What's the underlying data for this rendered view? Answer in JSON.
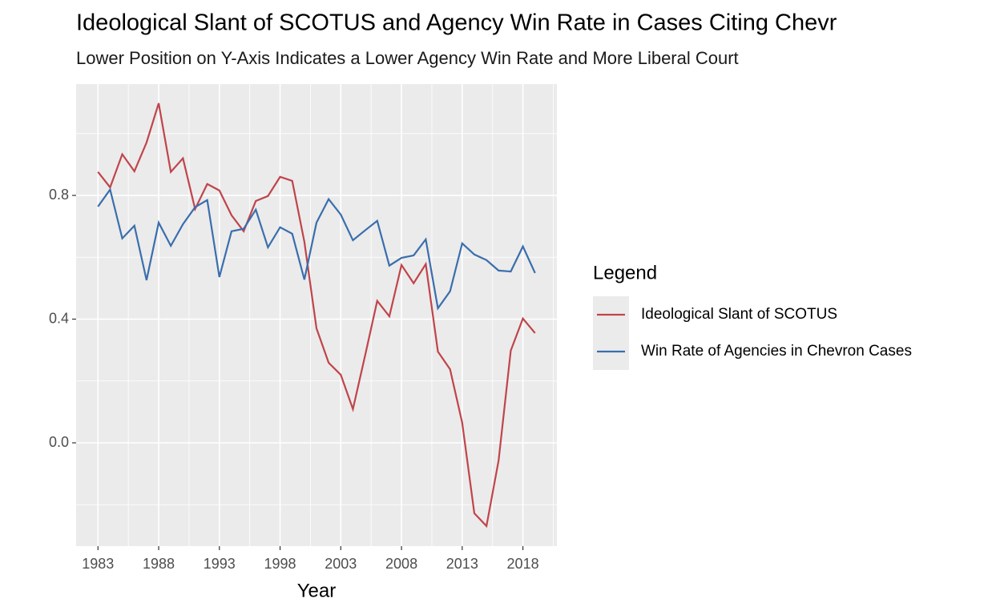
{
  "chart_data": {
    "type": "line",
    "title": "Ideological Slant of SCOTUS and Agency Win Rate in Cases Citing Chevr",
    "subtitle": "Lower Position on Y-Axis Indicates a Lower Agency Win Rate and More Liberal Court",
    "x_label": "Year",
    "legend_title": "Legend",
    "x": [
      1983,
      1984,
      1985,
      1986,
      1987,
      1988,
      1989,
      1990,
      1991,
      1992,
      1993,
      1994,
      1995,
      1996,
      1997,
      1998,
      1999,
      2000,
      2001,
      2002,
      2003,
      2004,
      2005,
      2006,
      2007,
      2008,
      2009,
      2010,
      2011,
      2012,
      2013,
      2014,
      2015,
      2016,
      2017,
      2018,
      2019
    ],
    "series": [
      {
        "name": "Ideological Slant of SCOTUS",
        "color": "#c0444b",
        "values": [
          0.876,
          0.826,
          0.933,
          0.878,
          0.971,
          1.098,
          0.876,
          0.92,
          0.756,
          0.837,
          0.816,
          0.736,
          0.684,
          0.782,
          0.798,
          0.86,
          0.847,
          0.65,
          0.37,
          0.259,
          0.22,
          0.109,
          0.282,
          0.459,
          0.409,
          0.575,
          0.516,
          0.578,
          0.295,
          0.238,
          0.065,
          -0.228,
          -0.269,
          -0.057,
          0.298,
          0.402,
          0.355
        ]
      },
      {
        "name": "Win Rate of Agencies in Chevron Cases",
        "color": "#3a6ead",
        "values": [
          0.764,
          0.819,
          0.661,
          0.702,
          0.526,
          0.712,
          0.637,
          0.707,
          0.762,
          0.785,
          0.536,
          0.684,
          0.692,
          0.754,
          0.632,
          0.697,
          0.676,
          0.528,
          0.712,
          0.788,
          0.738,
          0.655,
          0.687,
          0.718,
          0.573,
          0.598,
          0.606,
          0.658,
          0.435,
          0.49,
          0.645,
          0.609,
          0.591,
          0.557,
          0.554,
          0.635,
          0.549
        ]
      }
    ],
    "xlim": [
      1981.2,
      2020.8
    ],
    "xticks": [
      1983,
      1988,
      1993,
      1998,
      2003,
      2008,
      2013,
      2018
    ],
    "ylim": [
      -0.334,
      1.16
    ],
    "yticks": [
      {
        "value": 0,
        "label": "0.0"
      },
      {
        "value": 0.4,
        "label": "0.4"
      },
      {
        "value": 0.8,
        "label": "0.8"
      }
    ],
    "grid": true,
    "legend_position": "right"
  }
}
